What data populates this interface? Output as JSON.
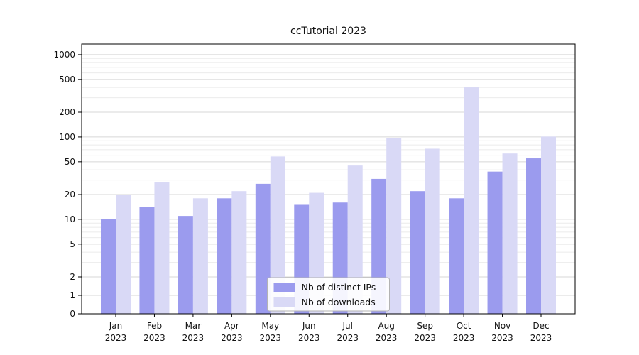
{
  "figure": {
    "title": "ccTutorial 2023"
  },
  "chart_data": {
    "type": "bar",
    "title": "ccTutorial 2023",
    "categories": [
      "Jan 2023",
      "Feb 2023",
      "Mar 2023",
      "Apr 2023",
      "May 2023",
      "Jun 2023",
      "Jul 2023",
      "Aug 2023",
      "Sep 2023",
      "Oct 2023",
      "Nov 2023",
      "Dec 2023"
    ],
    "category_top_lines": [
      "Jan",
      "Feb",
      "Mar",
      "Apr",
      "May",
      "Jun",
      "Jul",
      "Aug",
      "Sep",
      "Oct",
      "Nov",
      "Dec"
    ],
    "category_bottom_line": "2023",
    "series": [
      {
        "name": "Nb of distinct IPs",
        "color": "#9b9bee",
        "values": [
          10,
          14,
          11,
          18,
          27,
          15,
          16,
          31,
          22,
          18,
          38,
          55
        ]
      },
      {
        "name": "Nb of downloads",
        "color": "#d9d9f6",
        "values": [
          20,
          28,
          18,
          22,
          58,
          21,
          45,
          97,
          72,
          400,
          63,
          101
        ]
      }
    ],
    "xlabel": "",
    "ylabel": "",
    "y_axis": {
      "scale": "symlog",
      "ticks": [
        0,
        1,
        2,
        5,
        10,
        20,
        50,
        100,
        200,
        500,
        1000
      ],
      "range": [
        0,
        1250
      ]
    },
    "grid": true,
    "legend": {
      "position": "lower center",
      "entries": [
        "Nb of distinct IPs",
        "Nb of downloads"
      ]
    }
  }
}
